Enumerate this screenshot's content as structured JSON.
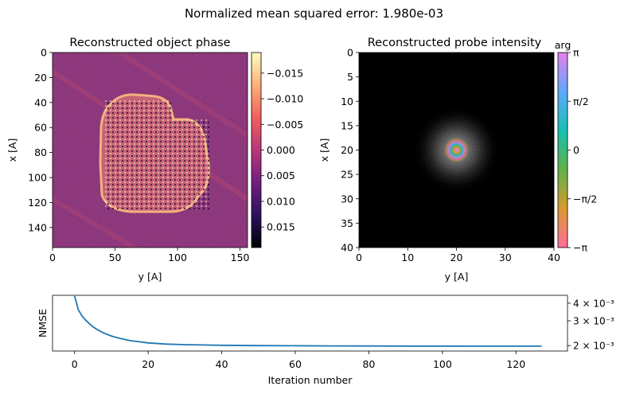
{
  "suptitle": "Normalized mean squared error: 1.980e-03",
  "colors": {
    "line": "#1f77b4",
    "probe_background": "#000000",
    "magma_stops": [
      "#000004",
      "#2c115f",
      "#721f81",
      "#b73779",
      "#f1605d",
      "#feb078",
      "#fcfdbf"
    ],
    "arg_stops": [
      "#ff6e9c",
      "#d89a2e",
      "#5fb24a",
      "#18c0b0",
      "#5fa8ff",
      "#e580e8"
    ]
  },
  "chart_data": [
    {
      "type": "heatmap",
      "title": "Reconstructed object phase",
      "xlabel": "y [A]",
      "ylabel": "x [A]",
      "xlim": [
        0,
        156
      ],
      "ylim": [
        156,
        0
      ],
      "xticks": [
        "0",
        "50",
        "100",
        "150"
      ],
      "yticks": [
        "0",
        "20",
        "40",
        "60",
        "80",
        "100",
        "120",
        "140"
      ],
      "colorbar": {
        "range": [
          -0.019,
          0.019
        ],
        "ticks": [
          "−0.015",
          "−0.010",
          "−0.005",
          "0.000",
          "0.005",
          "0.010",
          "0.015"
        ],
        "colormap": "magma"
      }
    },
    {
      "type": "heatmap",
      "title": "Reconstructed probe intensity",
      "xlabel": "y [A]",
      "ylabel": "x [A]",
      "xlim": [
        0,
        40
      ],
      "ylim": [
        40,
        0
      ],
      "xticks": [
        "0",
        "10",
        "20",
        "30",
        "40"
      ],
      "yticks": [
        "0",
        "5",
        "10",
        "15",
        "20",
        "25",
        "30",
        "35",
        "40"
      ],
      "probe_center": [
        20,
        20
      ],
      "colorbar": {
        "label": "arg",
        "ticks": [
          "π",
          "π/2",
          "0",
          "−π/2",
          "−π"
        ],
        "colormap": "hsv"
      }
    },
    {
      "type": "line",
      "title": "",
      "xlabel": "Iteration number",
      "ylabel": "NMSE",
      "yscale": "log",
      "xlim": [
        -6,
        134
      ],
      "ylim": [
        0.00183,
        0.00455
      ],
      "xticks": [
        "0",
        "20",
        "40",
        "60",
        "80",
        "100",
        "120"
      ],
      "yticks": [
        "4 × 10⁻³",
        "3 × 10⁻³",
        "2 × 10⁻³"
      ],
      "series": [
        {
          "x": [
            0,
            1,
            2,
            3,
            4,
            5,
            6,
            8,
            10,
            12,
            15,
            20,
            25,
            30,
            40,
            50,
            60,
            70,
            80,
            90,
            100,
            110,
            120,
            127
          ],
          "y": [
            0.0045,
            0.0036,
            0.00325,
            0.00303,
            0.00286,
            0.00272,
            0.00261,
            0.00245,
            0.00234,
            0.00226,
            0.00217,
            0.00209,
            0.00205,
            0.00203,
            0.00201,
            0.002,
            0.001995,
            0.00199,
            0.001987,
            0.001985,
            0.001983,
            0.001982,
            0.001981,
            0.00198
          ]
        }
      ]
    }
  ]
}
